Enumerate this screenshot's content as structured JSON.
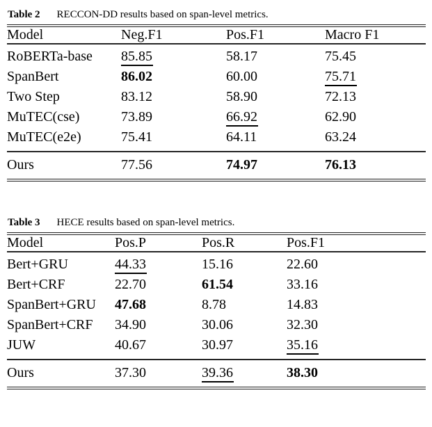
{
  "colors": {
    "background": "#ffffff",
    "text": "#000000",
    "rule": "#1f1f1f"
  },
  "tables": [
    {
      "caption_label": "Table 2",
      "caption_text": "RECCON-DD results based on span-level metrics.",
      "columns": [
        "Model",
        "Neg.F1",
        "Pos.F1",
        "Macro F1"
      ],
      "rows": [
        {
          "model": "RoBERTa-base",
          "values": [
            {
              "text": "85.85",
              "style": "underline"
            },
            {
              "text": "58.17",
              "style": "normal"
            },
            {
              "text": "75.45",
              "style": "normal"
            }
          ]
        },
        {
          "model": "SpanBert",
          "values": [
            {
              "text": "86.02",
              "style": "bold"
            },
            {
              "text": "60.00",
              "style": "normal"
            },
            {
              "text": "75.71",
              "style": "underline"
            }
          ]
        },
        {
          "model": "Two Step",
          "values": [
            {
              "text": "83.12",
              "style": "normal"
            },
            {
              "text": "58.90",
              "style": "normal"
            },
            {
              "text": "72.13",
              "style": "normal"
            }
          ]
        },
        {
          "model": "MuTEC(cse)",
          "values": [
            {
              "text": "73.89",
              "style": "normal"
            },
            {
              "text": "66.92",
              "style": "underline"
            },
            {
              "text": "62.90",
              "style": "normal"
            }
          ]
        },
        {
          "model": "MuTEC(e2e)",
          "values": [
            {
              "text": "75.41",
              "style": "normal"
            },
            {
              "text": "64.11",
              "style": "normal"
            },
            {
              "text": "63.24",
              "style": "normal"
            }
          ]
        }
      ],
      "footer_row": {
        "model": "Ours",
        "values": [
          {
            "text": "77.56",
            "style": "normal"
          },
          {
            "text": "74.97",
            "style": "bold"
          },
          {
            "text": "76.13",
            "style": "bold"
          }
        ]
      }
    },
    {
      "caption_label": "Table 3",
      "caption_text": "HECE results based on span-level metrics.",
      "columns": [
        "Model",
        "Pos.P",
        "Pos.R",
        "Pos.F1"
      ],
      "rows": [
        {
          "model": "Bert+GRU",
          "values": [
            {
              "text": "44.33",
              "style": "underline"
            },
            {
              "text": "15.16",
              "style": "normal"
            },
            {
              "text": "22.60",
              "style": "normal"
            }
          ]
        },
        {
          "model": "Bert+CRF",
          "values": [
            {
              "text": "22.70",
              "style": "normal"
            },
            {
              "text": "61.54",
              "style": "bold"
            },
            {
              "text": "33.16",
              "style": "normal"
            }
          ]
        },
        {
          "model": "SpanBert+GRU",
          "values": [
            {
              "text": "47.68",
              "style": "bold"
            },
            {
              "text": "8.78",
              "style": "normal"
            },
            {
              "text": "14.83",
              "style": "normal"
            }
          ]
        },
        {
          "model": "SpanBert+CRF",
          "values": [
            {
              "text": "34.90",
              "style": "normal"
            },
            {
              "text": "30.06",
              "style": "normal"
            },
            {
              "text": "32.30",
              "style": "normal"
            }
          ]
        },
        {
          "model": "JUW",
          "values": [
            {
              "text": "40.67",
              "style": "normal"
            },
            {
              "text": "30.97",
              "style": "normal"
            },
            {
              "text": "35.16",
              "style": "underline"
            }
          ]
        }
      ],
      "footer_row": {
        "model": "Ours",
        "values": [
          {
            "text": "37.30",
            "style": "normal"
          },
          {
            "text": "39.36",
            "style": "underline"
          },
          {
            "text": "38.30",
            "style": "bold"
          }
        ]
      }
    }
  ]
}
